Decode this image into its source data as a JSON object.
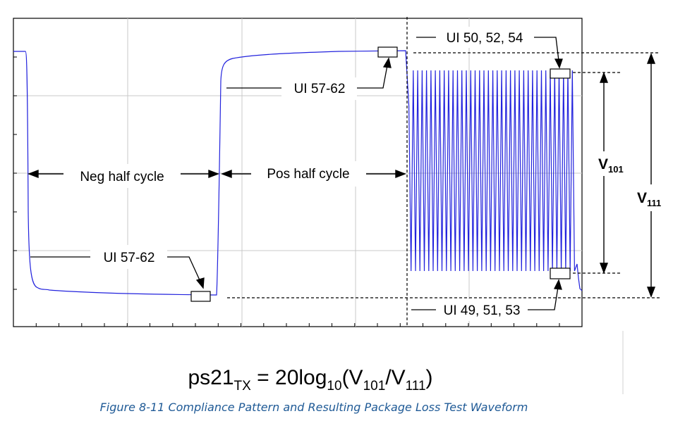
{
  "labels": {
    "neg_half_cycle": "Neg half cycle",
    "pos_half_cycle": "Pos half cycle",
    "ui_57_62_top": "UI 57-62",
    "ui_57_62_bottom": "UI 57-62",
    "ui_50_52_54": "UI 50, 52, 54",
    "ui_49_51_53": "UI 49, 51, 53",
    "v101_main": "V",
    "v101_sub": "101",
    "v111_main": "V",
    "v111_sub": "111"
  },
  "equation": {
    "p1": "ps21",
    "p1_sub": "TX",
    "p2": " = 20log",
    "p2_sub": "10",
    "p3": "(V",
    "p3_sub": "101",
    "p4": "/V",
    "p4_sub": "111",
    "p5": ")"
  },
  "caption": "Figure  8-11  Compliance Pattern and Resulting Package Loss Test Waveform",
  "colors": {
    "waveform": "#2222dd",
    "grid": "#c8c8c8",
    "caption": "#1f5a96"
  },
  "waveform": {
    "cycles_in_burst": 38
  }
}
